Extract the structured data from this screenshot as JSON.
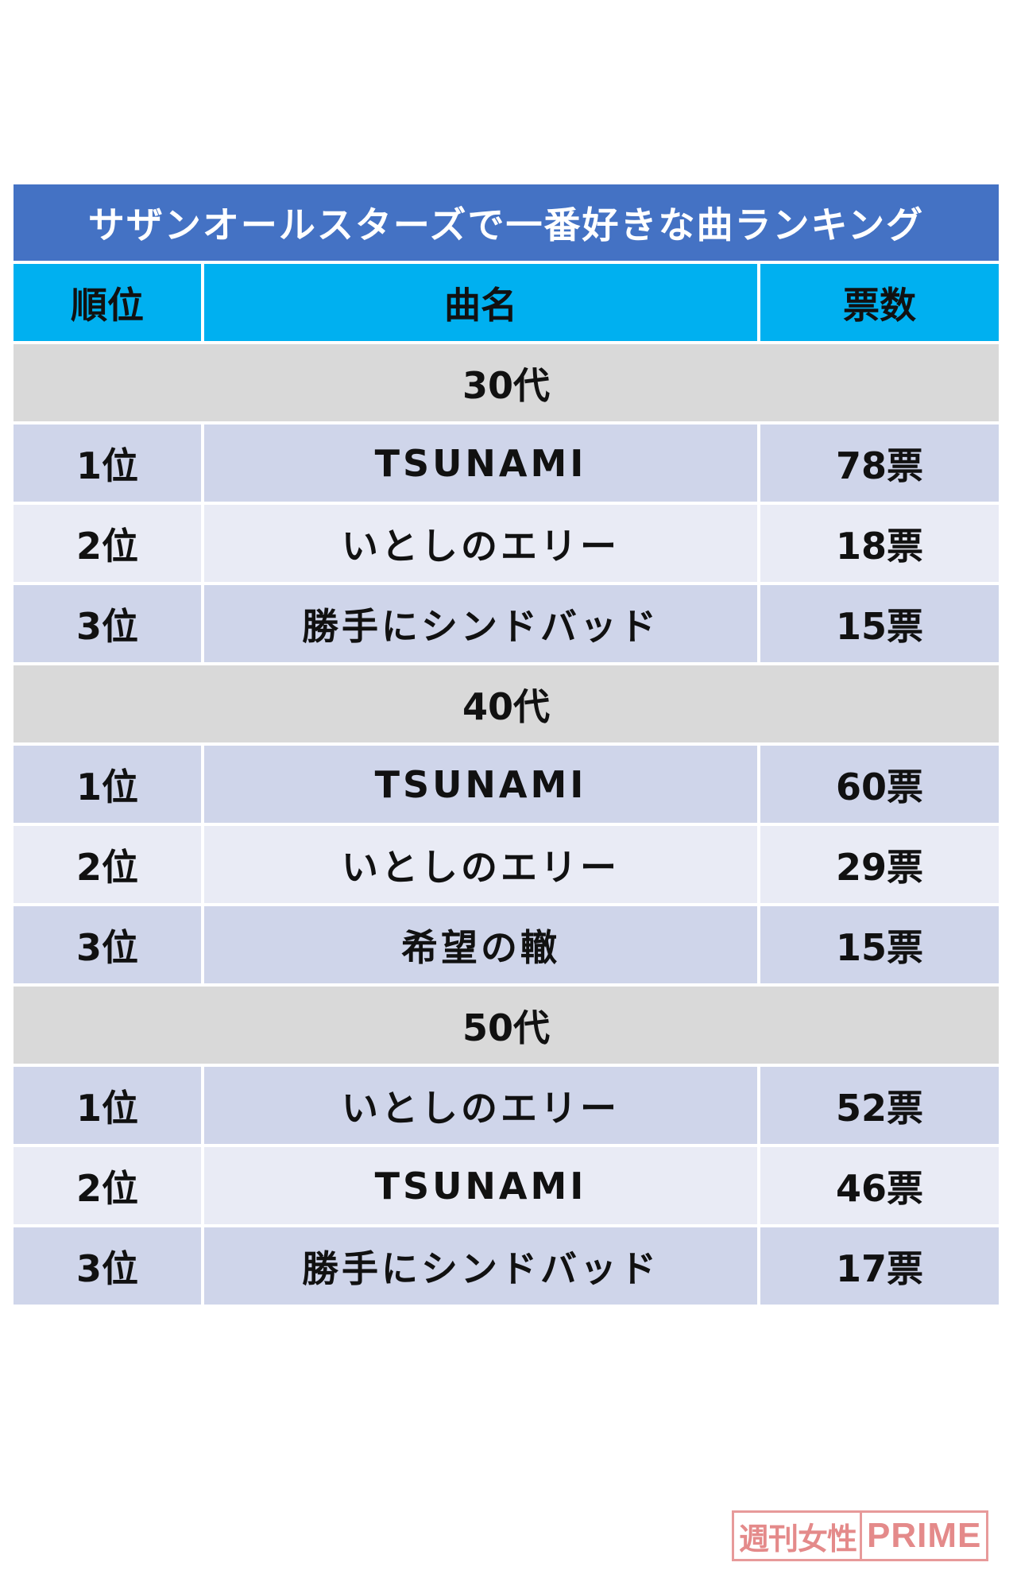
{
  "title": "サザンオールスターズで一番好きな曲ランキング",
  "header": {
    "rank": "順位",
    "song": "曲名",
    "votes": "票数"
  },
  "groups": [
    {
      "label": "30代",
      "rows": [
        {
          "rank": "1位",
          "song": "TSUNAMI",
          "votes": "78票"
        },
        {
          "rank": "2位",
          "song": "いとしのエリー",
          "votes": "18票"
        },
        {
          "rank": "3位",
          "song": "勝手にシンドバッド",
          "votes": "15票"
        }
      ]
    },
    {
      "label": "40代",
      "rows": [
        {
          "rank": "1位",
          "song": "TSUNAMI",
          "votes": "60票"
        },
        {
          "rank": "2位",
          "song": "いとしのエリー",
          "votes": "29票"
        },
        {
          "rank": "3位",
          "song": "希望の轍",
          "votes": "15票"
        }
      ]
    },
    {
      "label": "50代",
      "rows": [
        {
          "rank": "1位",
          "song": "いとしのエリー",
          "votes": "52票"
        },
        {
          "rank": "2位",
          "song": "TSUNAMI",
          "votes": "46票"
        },
        {
          "rank": "3位",
          "song": "勝手にシンドバッド",
          "votes": "17票"
        }
      ]
    }
  ],
  "watermark": {
    "jp": "週刊女性",
    "en": "PRIME"
  },
  "colors": {
    "title_bg": "#4472c4",
    "header_bg": "#00b0f0",
    "group_bg": "#d9d9d9",
    "row_odd": "#cfd5ea",
    "row_even": "#e9ebf5"
  }
}
